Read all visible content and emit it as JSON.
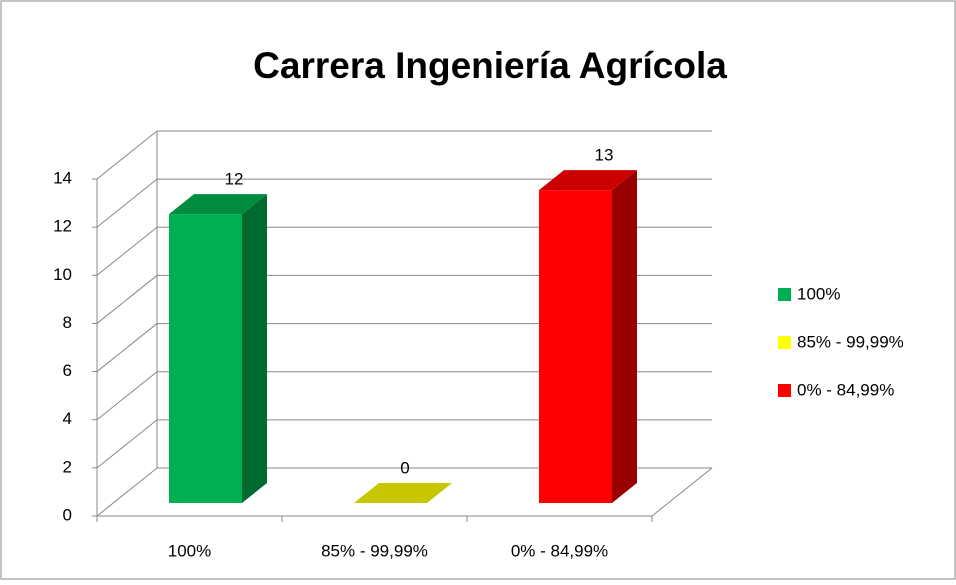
{
  "chart_data": {
    "type": "bar",
    "title": "Carrera Ingeniería Agrícola",
    "categories": [
      "100%",
      "85% - 99,99%",
      "0% - 84,99%"
    ],
    "values": [
      12,
      0,
      13
    ],
    "colors": [
      "#00b050",
      "#ffff00",
      "#ff0000"
    ],
    "ylim": [
      0,
      14
    ],
    "yticks": [
      0,
      2,
      4,
      6,
      8,
      10,
      12,
      14
    ],
    "grid": true,
    "legend": "right"
  }
}
